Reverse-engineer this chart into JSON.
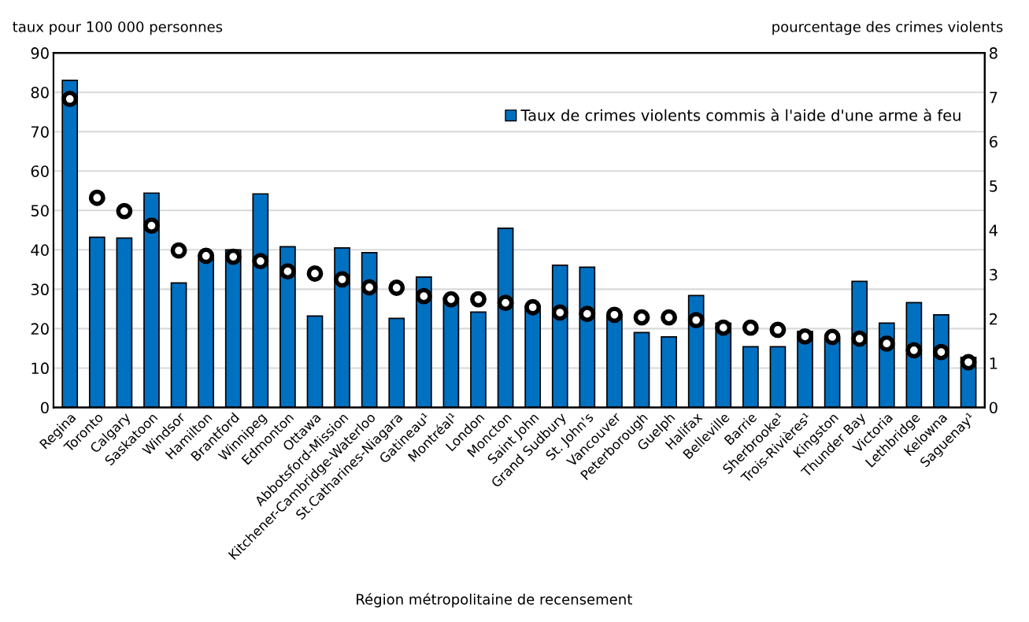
{
  "chart_data": {
    "type": "bar",
    "ylabel": "taux pour 100 000 personnes",
    "y2label": "pourcentage des crimes violents",
    "xlabel": "Région métropolitaine de recensement",
    "categories": [
      "Regina",
      "Toronto",
      "Calgary",
      "Saskatoon",
      "Windsor",
      "Hamilton",
      "Brantford",
      "Winnipeg",
      "Edmonton",
      "Ottawa",
      "Abbotsford-Mission",
      "Kitchener-Cambridge-Waterloo",
      "St.Catharines-Niagara",
      "Gatineau¹",
      "Montréal¹",
      "London",
      "Moncton",
      "Saint John",
      "Grand Sudbury",
      "St. John's",
      "Vancouver",
      "Peterborough",
      "Guelph",
      "Halifax",
      "Belleville",
      "Barrie",
      "Sherbrooke¹",
      "Trois-Rivières¹",
      "Kingston",
      "Thunder Bay",
      "Victoria",
      "Lethbridge",
      "Kelowna",
      "Saguenay¹"
    ],
    "series": [
      {
        "name": "Taux de crimes violents commis à l'aide d'une arme à feu",
        "color": "#0070c0",
        "values": [
          83,
          43.2,
          43,
          54.4,
          31.6,
          38.6,
          40,
          54.2,
          40.8,
          23.2,
          40.5,
          39.3,
          22.6,
          33.1,
          27.9,
          24.2,
          45.5,
          25.8,
          36.1,
          35.6,
          23.5,
          19.0,
          17.9,
          28.4,
          21.4,
          15.4,
          15.4,
          19.3,
          17.5,
          32.0,
          21.4,
          26.6,
          23.5,
          12.7
        ]
      },
      {
        "type": "scatter",
        "axis": "y2",
        "color": "#000000",
        "marker": "circle",
        "values": [
          6.96,
          4.73,
          4.43,
          4.1,
          3.54,
          3.42,
          3.4,
          3.3,
          3.07,
          3.02,
          2.89,
          2.71,
          2.7,
          2.51,
          2.44,
          2.44,
          2.36,
          2.26,
          2.14,
          2.11,
          2.09,
          2.03,
          2.03,
          1.97,
          1.8,
          1.8,
          1.75,
          1.6,
          1.59,
          1.55,
          1.44,
          1.29,
          1.25,
          1.02
        ]
      }
    ],
    "ylim": [
      0,
      90
    ],
    "yticks": [
      0,
      10,
      20,
      30,
      40,
      50,
      60,
      70,
      80,
      90
    ],
    "y2lim": [
      0,
      8
    ],
    "y2ticks": [
      0,
      1,
      2,
      3,
      4,
      5,
      6,
      7,
      8
    ],
    "grid": "y",
    "legend": "top right"
  }
}
